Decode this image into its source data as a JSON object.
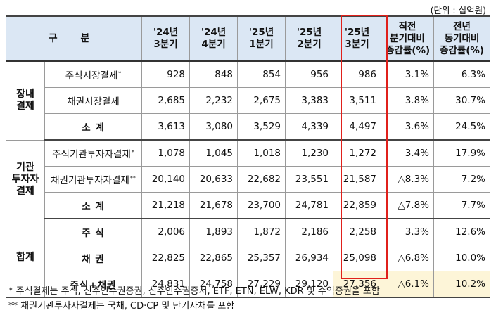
{
  "unit_note": "(단위 : 십억원)",
  "header": {
    "col0": "구 분",
    "cols": [
      "'24년\n3분기",
      "'24년\n4분기",
      "'25년\n1분기",
      "'25년\n2분기",
      "'25년\n3분기",
      "직전\n분기대비\n증감률(%)",
      "전년\n동기대비\n증감률(%)"
    ]
  },
  "groups": [
    {
      "name": "장내\n결제",
      "rows": [
        {
          "label": "주식시장결제",
          "sup": "*",
          "bold": false,
          "values": [
            "928",
            "848",
            "854",
            "956",
            "986",
            "3.1%",
            "6.3%"
          ]
        },
        {
          "label": "채권시장결제",
          "sup": "",
          "bold": false,
          "values": [
            "2,685",
            "2,232",
            "2,675",
            "3,383",
            "3,511",
            "3.8%",
            "30.7%"
          ]
        },
        {
          "label": "소 계",
          "sup": "",
          "bold": true,
          "values": [
            "3,613",
            "3,080",
            "3,529",
            "4,339",
            "4,497",
            "3.6%",
            "24.5%"
          ]
        }
      ]
    },
    {
      "name": "기관\n투자자\n결제",
      "rows": [
        {
          "label": "주식기관투자자결제",
          "sup": "*",
          "bold": false,
          "values": [
            "1,078",
            "1,045",
            "1,018",
            "1,230",
            "1,272",
            "3.4%",
            "17.9%"
          ]
        },
        {
          "label": "채권기관투자자결제",
          "sup": "**",
          "bold": false,
          "values": [
            "20,140",
            "20,633",
            "22,682",
            "23,551",
            "21,587",
            "△8.3%",
            "7.2%"
          ]
        },
        {
          "label": "소 계",
          "sup": "",
          "bold": true,
          "values": [
            "21,218",
            "21,678",
            "23,700",
            "24,781",
            "22,859",
            "△7.8%",
            "7.7%"
          ]
        }
      ]
    },
    {
      "name": "합계",
      "rows": [
        {
          "label": "주 식",
          "sup": "",
          "bold": true,
          "values": [
            "2,006",
            "1,893",
            "1,872",
            "2,186",
            "2,258",
            "3.3%",
            "12.6%"
          ]
        },
        {
          "label": "채 권",
          "sup": "",
          "bold": true,
          "values": [
            "22,825",
            "22,865",
            "25,357",
            "26,934",
            "25,098",
            "△6.8%",
            "10.0%"
          ]
        },
        {
          "label": "주식+채권",
          "sup": "",
          "bold": true,
          "values": [
            "24,831",
            "24,758",
            "27,229",
            "29,120",
            "27,356",
            "△6.1%",
            "10.2%"
          ]
        }
      ]
    }
  ],
  "highlight_color": "#fdf5d8",
  "box_color": "#e0201b",
  "notes": [
    "*  주식결제는 주식, 신주인수권증권, 신주인수권증서, ETF, ETN, ELW, KDR 및 수익증권을 포함",
    "**  채권기관투자자결제는 국채, CD·CP 및 단기사채를 포함"
  ]
}
